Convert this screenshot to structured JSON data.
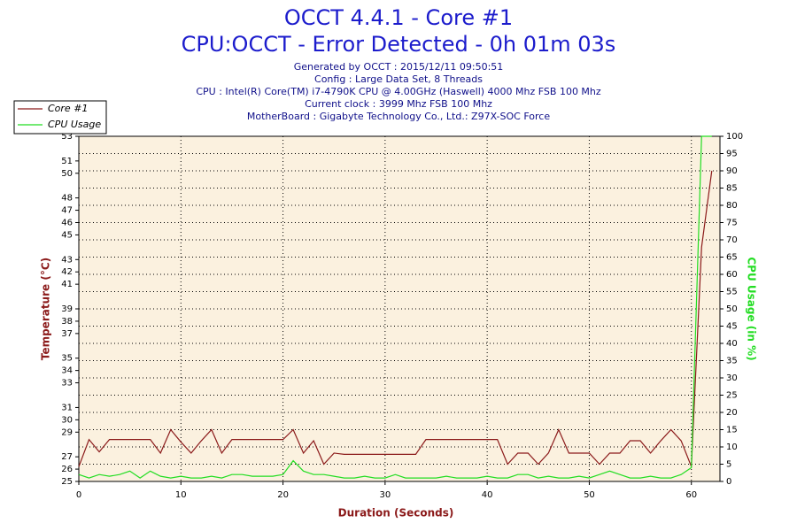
{
  "chart_data": {
    "type": "line",
    "title": "OCCT 4.4.1 - Core #1",
    "subtitle": "CPU:OCCT - Error Detected - 0h 01m 03s",
    "info_lines": [
      "Generated by OCCT : 2015/12/11 09:50:51",
      "Config : Large Data Set, 8 Threads",
      "CPU : Intel(R) Core(TM) i7-4790K CPU @ 4.00GHz (Haswell) 4000 Mhz FSB 100 Mhz",
      "Current clock : 3999 Mhz FSB 100 Mhz",
      "MotherBoard : Gigabyte Technology Co., Ltd.: Z97X-SOC Force"
    ],
    "x_label": "Duration (Seconds)",
    "y_label": "Temperature (°C)",
    "y2_label": "CPU Usage (in %)",
    "x": [
      0,
      1,
      2,
      3,
      4,
      5,
      6,
      7,
      8,
      9,
      10,
      11,
      12,
      13,
      14,
      15,
      16,
      17,
      18,
      19,
      20,
      21,
      22,
      23,
      24,
      25,
      26,
      27,
      28,
      29,
      30,
      31,
      32,
      33,
      34,
      35,
      36,
      37,
      38,
      39,
      40,
      41,
      42,
      43,
      44,
      45,
      46,
      47,
      48,
      49,
      50,
      51,
      52,
      53,
      54,
      55,
      56,
      57,
      58,
      59,
      60,
      61,
      62
    ],
    "xlim": [
      0,
      62.8
    ],
    "xticks": [
      0,
      10,
      20,
      30,
      40,
      50,
      60
    ],
    "ylim": [
      25,
      53
    ],
    "yticks": [
      25,
      26,
      27,
      29,
      30,
      31,
      33,
      34,
      35,
      37,
      38,
      39,
      41,
      42,
      43,
      45,
      46,
      47,
      48,
      50,
      51,
      53
    ],
    "y2lim": [
      0,
      100
    ],
    "y2ticks": [
      0,
      5,
      10,
      15,
      20,
      25,
      30,
      35,
      40,
      45,
      50,
      55,
      60,
      65,
      70,
      75,
      80,
      85,
      90,
      95,
      100
    ],
    "grid": true,
    "legend": "upper left",
    "series": [
      {
        "name": "Core #1",
        "color": "#8b1a1a",
        "values": [
          26.2,
          28.4,
          27.4,
          28.4,
          28.4,
          28.4,
          28.4,
          28.4,
          27.3,
          29.2,
          28.2,
          27.3,
          28.3,
          29.2,
          27.3,
          28.4,
          28.4,
          28.4,
          28.4,
          28.4,
          28.4,
          29.2,
          27.3,
          28.3,
          26.4,
          27.3,
          27.2,
          27.2,
          27.2,
          27.2,
          27.2,
          27.2,
          27.2,
          27.2,
          28.4,
          28.4,
          28.4,
          28.4,
          28.4,
          28.4,
          28.4,
          28.4,
          26.4,
          27.3,
          27.3,
          26.4,
          27.3,
          29.2,
          27.3,
          27.3,
          27.3,
          26.4,
          27.3,
          27.3,
          28.3,
          28.3,
          27.3,
          28.3,
          29.2,
          28.3,
          26.2,
          44,
          50.2
        ]
      },
      {
        "name": "CPU Usage",
        "color": "#22dd22",
        "axis": "y2",
        "values": [
          2,
          1,
          2,
          1.5,
          2,
          3,
          1,
          3,
          1.5,
          1,
          1.5,
          1,
          1,
          1.5,
          1,
          2,
          2,
          1.5,
          1.5,
          1.5,
          2,
          6,
          3,
          2,
          2,
          1.5,
          1,
          1,
          1.5,
          1,
          1,
          2,
          1,
          1,
          1,
          1,
          1.5,
          1,
          1,
          1,
          1.5,
          1,
          1,
          2,
          2,
          1,
          1.5,
          1,
          1,
          1.5,
          1,
          2,
          3,
          2,
          1,
          1,
          1.5,
          1,
          1,
          2,
          4,
          100,
          100
        ]
      }
    ]
  }
}
